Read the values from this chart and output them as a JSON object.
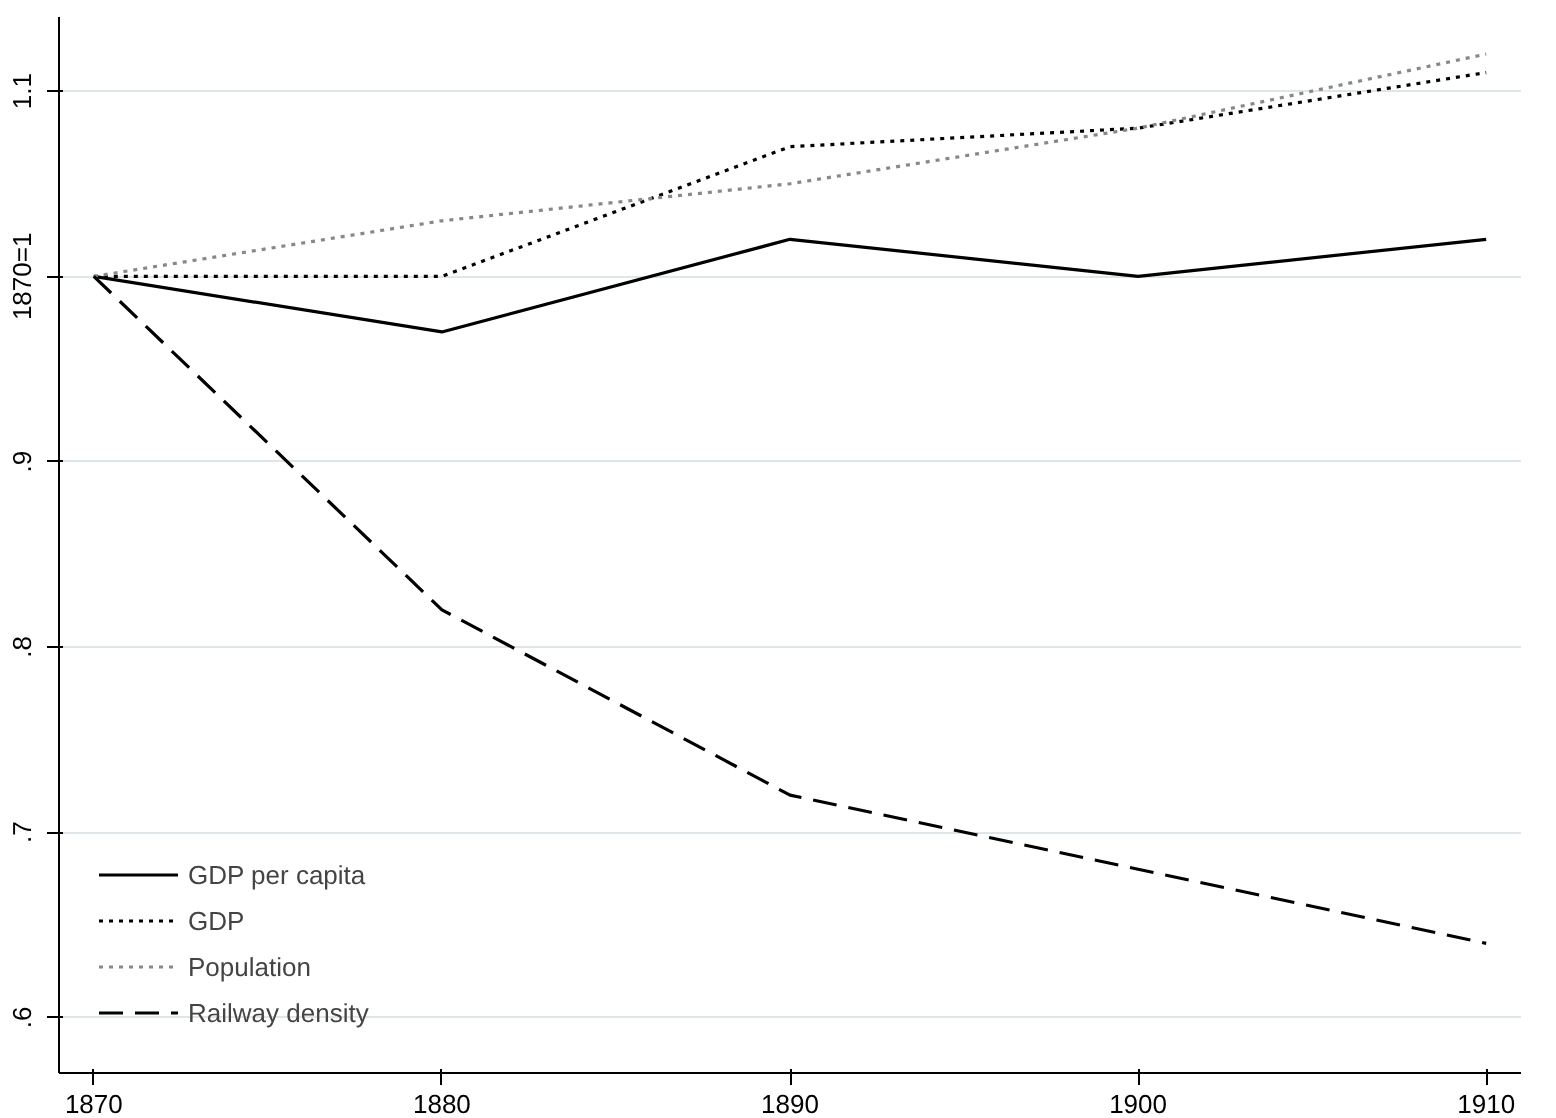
{
  "chart_data": {
    "type": "line",
    "x": [
      1870,
      1880,
      1890,
      1900,
      1910
    ],
    "xlim": [
      1869,
      1911
    ],
    "xticks": [
      1870,
      1880,
      1890,
      1900,
      1910
    ],
    "ylim": [
      0.57,
      1.14
    ],
    "yticks": [
      {
        "value": 0.6,
        "label": ".6"
      },
      {
        "value": 0.7,
        "label": ".7"
      },
      {
        "value": 0.8,
        "label": ".8"
      },
      {
        "value": 0.9,
        "label": ".9"
      },
      {
        "value": 1.0,
        "label": "1870=1"
      },
      {
        "value": 1.1,
        "label": "1.1"
      }
    ],
    "grid": "y",
    "legend": "bottom left",
    "series": [
      {
        "name": "GDP per capita",
        "color": "#000000",
        "line_style": "solid",
        "values": [
          1.0,
          0.97,
          1.02,
          1.0,
          1.02
        ]
      },
      {
        "name": "GDP",
        "color": "#000000",
        "line_style": "dotted",
        "values": [
          1.0,
          1.0,
          1.07,
          1.08,
          1.11
        ]
      },
      {
        "name": "Population",
        "color": "#888888",
        "line_style": "dotted",
        "values": [
          1.0,
          1.03,
          1.05,
          1.08,
          1.12
        ]
      },
      {
        "name": "Railway density",
        "color": "#000000",
        "line_style": "dashed",
        "values": [
          1.0,
          0.82,
          0.72,
          0.68,
          0.64
        ]
      }
    ]
  }
}
